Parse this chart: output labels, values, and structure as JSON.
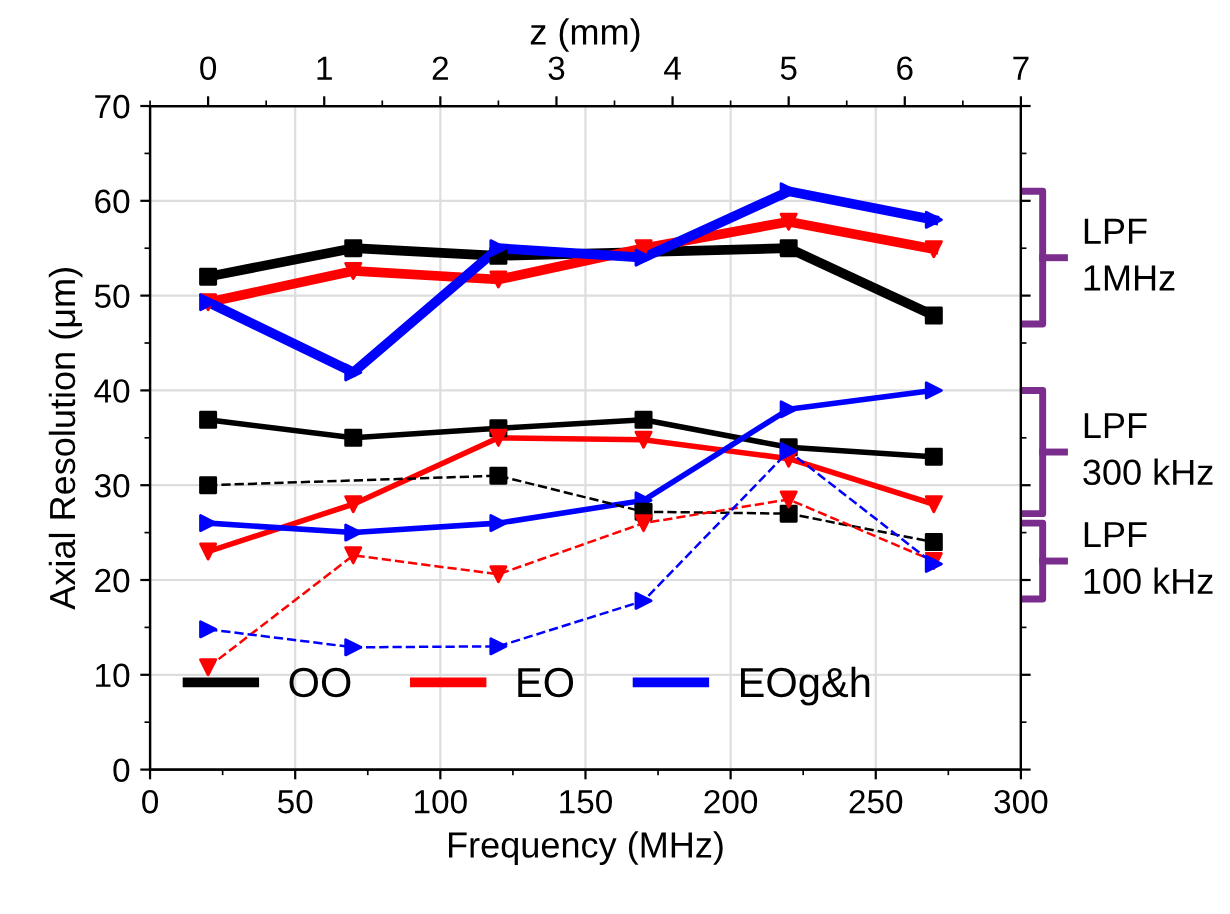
{
  "chart_data": {
    "type": "line",
    "xlabel": "Frequency (MHz)",
    "ylabel": "Axial Resolution (μm)",
    "x2label": "z (mm)",
    "xlim": [
      0,
      300
    ],
    "xticks": [
      0,
      50,
      100,
      150,
      200,
      250,
      300
    ],
    "ylim": [
      0,
      70
    ],
    "yticks": [
      0,
      10,
      20,
      30,
      40,
      50,
      60,
      70
    ],
    "x2lim": [
      -0.5,
      7
    ],
    "x2ticks": [
      0,
      1,
      2,
      3,
      4,
      5,
      6,
      7
    ],
    "grid": true,
    "legend": "bottom left",
    "x": [
      20,
      70,
      120,
      170,
      220,
      270
    ],
    "series": [
      {
        "name": "OO",
        "color": "#000000",
        "marker": "square",
        "line_style": "solid",
        "values": [
          52,
          55,
          54.2,
          null,
          55,
          47.9
        ]
      },
      {
        "name": "EO",
        "color": "#ff0000",
        "marker": "triangle-down",
        "line_style": "solid",
        "values": [
          49.3,
          52.6,
          51.7,
          55,
          57.8,
          54.9
        ]
      },
      {
        "name": "EOg&h",
        "color": "#0000ff",
        "marker": "triangle-right",
        "line_style": "solid",
        "values": [
          49.3,
          41.9,
          55,
          54,
          61,
          58
        ]
      },
      {
        "color": "#000000",
        "marker": "square",
        "line_style": "solid",
        "values": [
          36.9,
          35,
          36,
          36.9,
          34,
          33
        ]
      },
      {
        "color": "#ff0000",
        "marker": "triangle-down",
        "line_style": "solid",
        "values": [
          23,
          28,
          35,
          34.8,
          32.8,
          28
        ]
      },
      {
        "color": "#0000ff",
        "marker": "triangle-right",
        "line_style": "solid",
        "values": [
          26,
          25,
          26,
          28.4,
          38,
          40
        ]
      },
      {
        "color": "#000000",
        "marker": "square",
        "line_style": "dashed",
        "values": [
          30,
          null,
          31,
          27.2,
          27,
          24
        ]
      },
      {
        "color": "#ff0000",
        "marker": "triangle-down",
        "line_style": "dashed",
        "values": [
          10.8,
          22.6,
          20.6,
          26,
          28.5,
          22
        ]
      },
      {
        "color": "#0000ff",
        "marker": "triangle-right",
        "line_style": "dashed",
        "values": [
          14.8,
          12.9,
          13,
          17.8,
          33.6,
          21.7
        ]
      }
    ],
    "annotations": [
      "LPF\n1MHz",
      "LPF\n300 kHz",
      "LPF\n100 kHz"
    ]
  }
}
